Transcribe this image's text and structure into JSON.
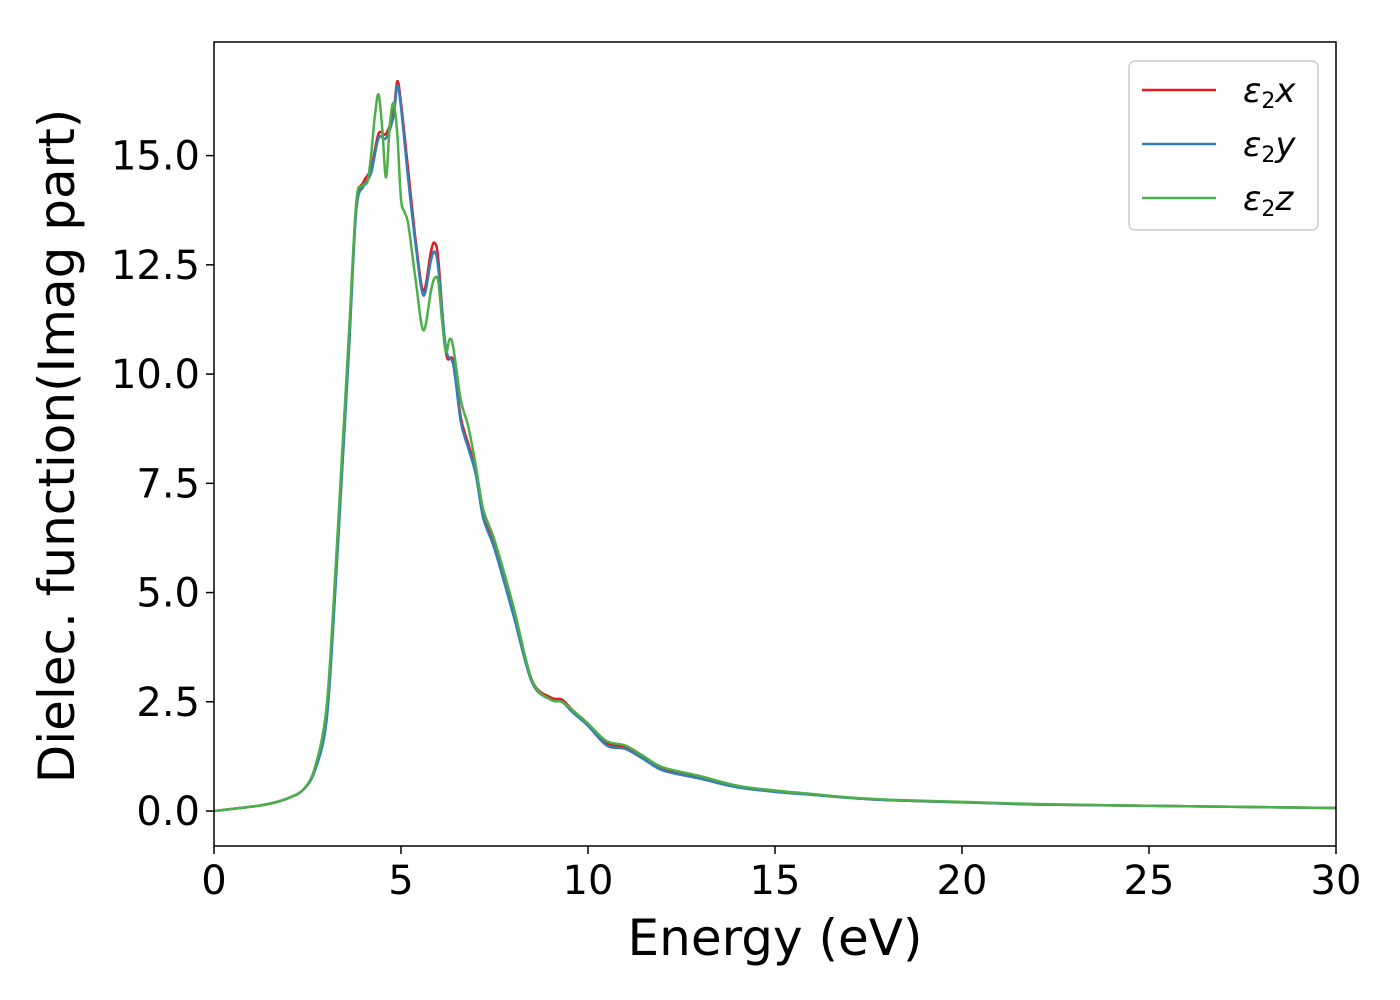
{
  "chart_data": {
    "type": "line",
    "title": "",
    "xlabel": "Energy (eV)",
    "ylabel": "Dielec. function(Imag part)",
    "xlim": [
      0,
      30
    ],
    "ylim": [
      -0.8,
      17.6
    ],
    "xticks": [
      0,
      5,
      10,
      15,
      20,
      25,
      30
    ],
    "xtick_labels": [
      "0",
      "5",
      "10",
      "15",
      "20",
      "25",
      "30"
    ],
    "yticks": [
      0.0,
      2.5,
      5.0,
      7.5,
      10.0,
      12.5,
      15.0
    ],
    "ytick_labels": [
      "0.0",
      "2.5",
      "5.0",
      "7.5",
      "10.0",
      "12.5",
      "15.0"
    ],
    "grid": false,
    "legend_position": "top-right",
    "series": [
      {
        "name": "ε2x",
        "legend": {
          "symbol": "ε",
          "sub": "2",
          "axis": "x"
        },
        "color": "#e41a1c",
        "x": [
          0,
          1,
          1.5,
          2,
          2.4,
          2.7,
          3.0,
          3.2,
          3.4,
          3.6,
          3.8,
          4.0,
          4.2,
          4.4,
          4.6,
          4.8,
          4.9,
          5.0,
          5.2,
          5.4,
          5.6,
          5.8,
          5.9,
          6.0,
          6.2,
          6.4,
          6.6,
          6.8,
          7.0,
          7.2,
          7.5,
          8.0,
          8.5,
          9.0,
          9.3,
          9.6,
          10.0,
          10.5,
          11,
          11.5,
          12,
          13,
          14,
          15,
          16,
          17,
          18,
          20,
          22,
          25,
          28,
          30
        ],
        "y": [
          0,
          0.1,
          0.17,
          0.3,
          0.5,
          0.95,
          2.1,
          4.5,
          7.5,
          10.5,
          13.8,
          14.4,
          14.7,
          15.5,
          15.5,
          16.0,
          16.7,
          16.2,
          14.6,
          13.0,
          11.9,
          12.8,
          13.0,
          12.6,
          10.5,
          10.3,
          9.0,
          8.4,
          7.8,
          6.8,
          6.1,
          4.6,
          3.0,
          2.6,
          2.55,
          2.3,
          2.0,
          1.55,
          1.45,
          1.2,
          0.95,
          0.75,
          0.55,
          0.45,
          0.38,
          0.3,
          0.25,
          0.2,
          0.15,
          0.12,
          0.09,
          0.07
        ]
      },
      {
        "name": "ε2y",
        "legend": {
          "symbol": "ε",
          "sub": "2",
          "axis": "y"
        },
        "color": "#377eb8",
        "x": [
          0,
          1,
          1.5,
          2,
          2.4,
          2.7,
          3.0,
          3.2,
          3.4,
          3.6,
          3.8,
          4.0,
          4.2,
          4.4,
          4.6,
          4.8,
          4.9,
          5.0,
          5.2,
          5.4,
          5.6,
          5.8,
          5.9,
          6.0,
          6.2,
          6.4,
          6.6,
          6.8,
          7.0,
          7.2,
          7.5,
          8.0,
          8.5,
          9.0,
          9.3,
          9.6,
          10.0,
          10.5,
          11,
          11.5,
          12,
          13,
          14,
          15,
          16,
          17,
          18,
          20,
          22,
          25,
          28,
          30
        ],
        "y": [
          0,
          0.1,
          0.17,
          0.3,
          0.5,
          0.93,
          2.0,
          4.4,
          7.4,
          10.4,
          13.7,
          14.3,
          14.6,
          15.4,
          15.4,
          15.9,
          16.6,
          16.1,
          14.4,
          12.9,
          11.8,
          12.6,
          12.8,
          12.4,
          10.6,
          10.2,
          8.9,
          8.3,
          7.7,
          6.7,
          6.0,
          4.5,
          2.95,
          2.55,
          2.5,
          2.25,
          1.95,
          1.5,
          1.42,
          1.18,
          0.93,
          0.74,
          0.54,
          0.44,
          0.37,
          0.3,
          0.25,
          0.2,
          0.15,
          0.12,
          0.09,
          0.07
        ]
      },
      {
        "name": "ε2z",
        "legend": {
          "symbol": "ε",
          "sub": "2",
          "axis": "z"
        },
        "color": "#4daf4a",
        "x": [
          0,
          1,
          1.5,
          2,
          2.4,
          2.7,
          3.0,
          3.2,
          3.4,
          3.6,
          3.8,
          3.95,
          4.1,
          4.2,
          4.3,
          4.4,
          4.5,
          4.6,
          4.7,
          4.8,
          4.9,
          5.0,
          5.1,
          5.2,
          5.4,
          5.6,
          5.8,
          5.9,
          6.0,
          6.1,
          6.2,
          6.3,
          6.4,
          6.6,
          6.8,
          7.0,
          7.2,
          7.5,
          8.0,
          8.5,
          9.0,
          9.3,
          9.6,
          10.0,
          10.5,
          11,
          11.5,
          12,
          13,
          14,
          15,
          16,
          17,
          18,
          20,
          22,
          25,
          28,
          30
        ],
        "y": [
          0,
          0.1,
          0.17,
          0.3,
          0.5,
          1.0,
          2.3,
          4.8,
          7.8,
          10.8,
          13.9,
          14.3,
          14.4,
          15.0,
          15.9,
          16.4,
          15.6,
          14.5,
          15.7,
          16.2,
          15.5,
          14.0,
          13.7,
          13.4,
          12.1,
          11.0,
          11.9,
          12.2,
          12.1,
          11.2,
          10.5,
          10.8,
          10.6,
          9.4,
          8.8,
          7.9,
          6.9,
          6.2,
          4.7,
          3.0,
          2.55,
          2.5,
          2.3,
          2.0,
          1.6,
          1.5,
          1.25,
          1.0,
          0.8,
          0.58,
          0.47,
          0.39,
          0.31,
          0.26,
          0.21,
          0.16,
          0.12,
          0.09,
          0.07
        ]
      }
    ]
  }
}
